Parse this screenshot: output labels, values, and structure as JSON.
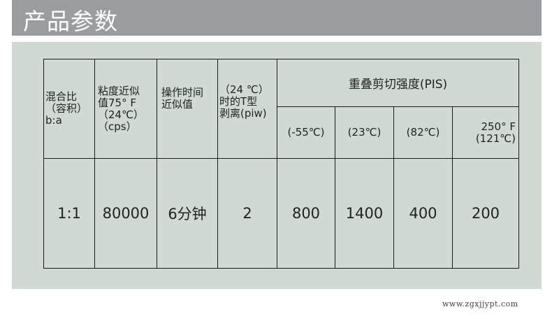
{
  "title": "产品参数",
  "table": {
    "headers": {
      "mix_ratio": "混合比\n （容积）\nb:a",
      "viscosity": "粘度近似\n值75° F\n （24℃）\n （cps）",
      "work_time": "操作时间\n近似值",
      "peel": " （24 ℃）\n时的T型\n剥离(piw)",
      "shear_group": "重叠剪切强度(PIS)",
      "shear_temps": [
        "(-55℃)",
        "(23℃)",
        "(82℃)",
        "250° F\n(121℃)"
      ]
    },
    "row": {
      "mix_ratio": "1:1",
      "viscosity": "80000",
      "work_time": "6分钟",
      "peel": "2",
      "shear": [
        "800",
        "1400",
        "400",
        "200"
      ]
    }
  },
  "footer": "www.zgxjjypt.com"
}
